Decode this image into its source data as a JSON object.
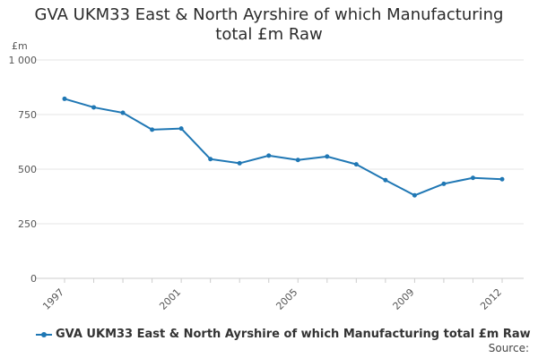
{
  "chart_data": {
    "type": "line",
    "title_line1": "GVA UKM33 East & North Ayrshire of which Manufacturing",
    "title_line2": "total £m Raw",
    "y_unit": "£m",
    "ylim": [
      0,
      1000
    ],
    "y_ticks": [
      0,
      250,
      500,
      750,
      1000
    ],
    "y_tick_labels": [
      "0",
      "250",
      "500",
      "750",
      "1 000"
    ],
    "x_tick_labels": [
      "1997",
      "2001",
      "2005",
      "2009",
      "2012"
    ],
    "x": [
      1997,
      1998,
      1999,
      2000,
      2001,
      2002,
      2003,
      2004,
      2005,
      2006,
      2007,
      2008,
      2009,
      2010,
      2011,
      2012
    ],
    "series": [
      {
        "name": "GVA UKM33 East & North Ayrshire of which Manufacturing total £m Raw",
        "values": [
          822,
          783,
          758,
          681,
          686,
          546,
          527,
          562,
          542,
          558,
          522,
          450,
          380,
          433,
          460,
          454
        ],
        "color": "#1f77b4"
      }
    ],
    "grid": true,
    "legend_placement": "bottom-left",
    "source_label": "Source:"
  }
}
